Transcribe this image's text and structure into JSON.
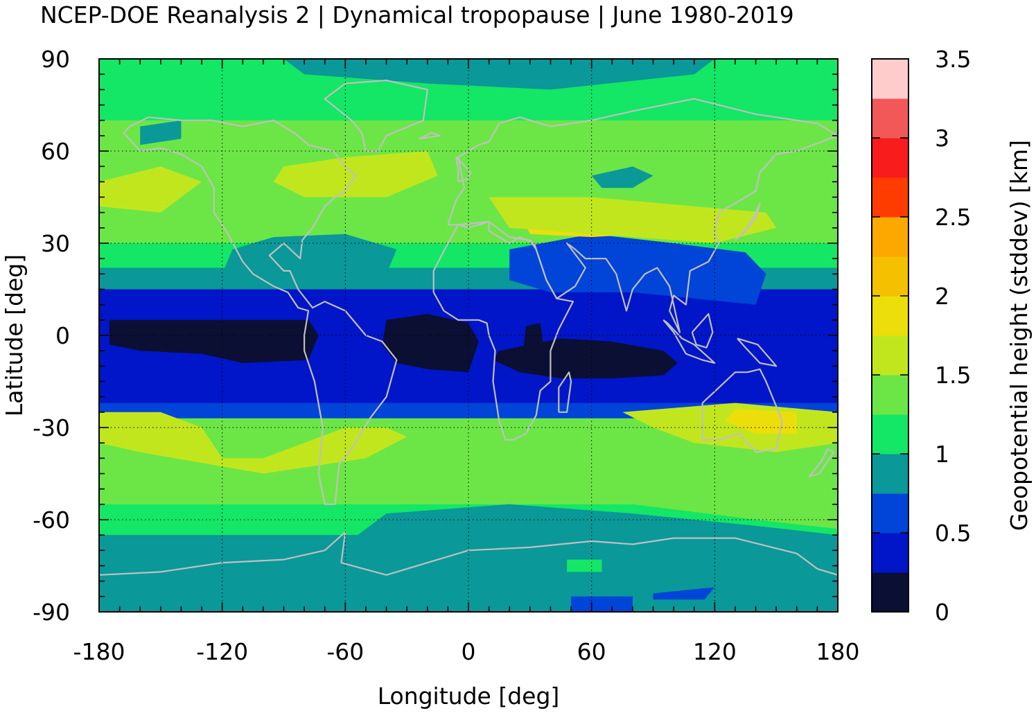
{
  "chart_data": {
    "type": "heatmap",
    "title": "NCEP-DOE Reanalysis 2 | Dynamical tropopause | June 1980-2019",
    "xlabel": "Longitude [deg]",
    "ylabel": "Latitude [deg]",
    "colorbar_label": "Geopotential height (stddev) [km]",
    "xlim": [
      -180,
      180
    ],
    "ylim": [
      -90,
      90
    ],
    "zlim": [
      0,
      3.5
    ],
    "x_ticks": [
      -180,
      -120,
      -60,
      0,
      60,
      120,
      180
    ],
    "y_ticks": [
      -90,
      -60,
      -30,
      0,
      30,
      60,
      90
    ],
    "colorbar_ticks": [
      0,
      0.5,
      1,
      1.5,
      2,
      2.5,
      3,
      3.5
    ],
    "grid": true,
    "coastlines": true,
    "color_levels": [
      {
        "from": 0.0,
        "to": 0.25,
        "color": "#0b0f33"
      },
      {
        "from": 0.25,
        "to": 0.5,
        "color": "#0016c8"
      },
      {
        "from": 0.5,
        "to": 0.75,
        "color": "#0044d8"
      },
      {
        "from": 0.75,
        "to": 1.0,
        "color": "#0a9898"
      },
      {
        "from": 1.0,
        "to": 1.25,
        "color": "#14e666"
      },
      {
        "from": 1.25,
        "to": 1.5,
        "color": "#6ce646"
      },
      {
        "from": 1.5,
        "to": 1.75,
        "color": "#c2e61e"
      },
      {
        "from": 1.75,
        "to": 2.0,
        "color": "#ecde0a"
      },
      {
        "from": 2.0,
        "to": 2.25,
        "color": "#f4c000"
      },
      {
        "from": 2.25,
        "to": 2.5,
        "color": "#fca800"
      },
      {
        "from": 2.5,
        "to": 2.75,
        "color": "#ff3c00"
      },
      {
        "from": 2.75,
        "to": 3.0,
        "color": "#f81c1c"
      },
      {
        "from": 3.0,
        "to": 3.25,
        "color": "#f25858"
      },
      {
        "from": 3.25,
        "to": 3.5,
        "color": "#ffcccc"
      }
    ],
    "background_lon_sweep": [
      {
        "lat": 90,
        "values": [
          1.1
        ]
      },
      {
        "lat": 80,
        "values": [
          1.15
        ]
      },
      {
        "lat": 70,
        "values": [
          1.25
        ]
      },
      {
        "lat": 60,
        "values": [
          1.25
        ]
      },
      {
        "lat": 50,
        "values": [
          1.4
        ]
      },
      {
        "lat": 40,
        "values": [
          1.3
        ]
      },
      {
        "lat": 30,
        "values": [
          1.1
        ]
      },
      {
        "lat": 22,
        "values": [
          0.9
        ]
      },
      {
        "lat": 15,
        "values": [
          0.45
        ]
      },
      {
        "lat": 5,
        "values": [
          0.35
        ]
      },
      {
        "lat": -5,
        "values": [
          0.35
        ]
      },
      {
        "lat": -15,
        "values": [
          0.4
        ]
      },
      {
        "lat": -22,
        "values": [
          0.7
        ]
      },
      {
        "lat": -27,
        "values": [
          1.3
        ]
      },
      {
        "lat": -35,
        "values": [
          1.4
        ]
      },
      {
        "lat": -45,
        "values": [
          1.3
        ]
      },
      {
        "lat": -55,
        "values": [
          1.1
        ]
      },
      {
        "lat": -65,
        "values": [
          0.95
        ]
      },
      {
        "lat": -75,
        "values": [
          0.9
        ]
      },
      {
        "lat": -90,
        "values": [
          0.85
        ]
      }
    ],
    "regions": [
      {
        "level": 0.25,
        "lonlat": [
          [
            -180,
            -5
          ],
          [
            -165,
            3
          ],
          [
            -120,
            5
          ],
          [
            -80,
            6
          ],
          [
            -72,
            2
          ],
          [
            -75,
            -5
          ],
          [
            -80,
            -10
          ],
          [
            -120,
            -9
          ],
          [
            -160,
            -8
          ],
          [
            -180,
            -8
          ]
        ]
      },
      {
        "level": 0.1,
        "lonlat": [
          [
            -175,
            5
          ],
          [
            -150,
            5
          ],
          [
            -110,
            5
          ],
          [
            -78,
            5
          ],
          [
            -73,
            0
          ],
          [
            -78,
            -8
          ],
          [
            -110,
            -9
          ],
          [
            -130,
            -6
          ],
          [
            -160,
            -5
          ],
          [
            -175,
            -3
          ]
        ]
      },
      {
        "level": 0.1,
        "lonlat": [
          [
            -40,
            5
          ],
          [
            -20,
            7
          ],
          [
            0,
            4
          ],
          [
            5,
            -2
          ],
          [
            0,
            -12
          ],
          [
            -20,
            -11
          ],
          [
            -35,
            -9
          ],
          [
            -42,
            -3
          ]
        ]
      },
      {
        "level": 0.1,
        "lonlat": [
          [
            15,
            -5
          ],
          [
            30,
            -3
          ],
          [
            45,
            -1
          ],
          [
            70,
            -2
          ],
          [
            95,
            -5
          ],
          [
            102,
            -9
          ],
          [
            95,
            -13
          ],
          [
            70,
            -14
          ],
          [
            45,
            -14
          ],
          [
            25,
            -12
          ],
          [
            12,
            -8
          ]
        ]
      },
      {
        "level": 0.1,
        "lonlat": [
          [
            28,
            3
          ],
          [
            35,
            4
          ],
          [
            37,
            -6
          ],
          [
            30,
            -10
          ],
          [
            27,
            -3
          ]
        ]
      },
      {
        "level": 0.65,
        "lonlat": [
          [
            20,
            28
          ],
          [
            60,
            33
          ],
          [
            100,
            30
          ],
          [
            135,
            27
          ],
          [
            145,
            20
          ],
          [
            140,
            10
          ],
          [
            110,
            12
          ],
          [
            80,
            14
          ],
          [
            40,
            14
          ],
          [
            20,
            18
          ]
        ]
      },
      {
        "level": 0.85,
        "lonlat": [
          [
            -95,
            32
          ],
          [
            -60,
            33
          ],
          [
            -35,
            28
          ],
          [
            -40,
            20
          ],
          [
            -70,
            18
          ],
          [
            -100,
            20
          ],
          [
            -120,
            20
          ],
          [
            -115,
            28
          ]
        ]
      },
      {
        "level": 1.65,
        "lonlat": [
          [
            -180,
            50
          ],
          [
            -150,
            55
          ],
          0,
          [
            -130,
            50
          ],
          [
            -150,
            40
          ],
          [
            -180,
            42
          ]
        ]
      },
      {
        "level": 1.65,
        "lonlat": [
          [
            -90,
            55
          ],
          [
            -60,
            58
          ],
          [
            -20,
            60
          ],
          [
            -15,
            52
          ],
          [
            -40,
            45
          ],
          [
            -80,
            45
          ],
          [
            -95,
            50
          ]
        ]
      },
      {
        "level": 1.9,
        "lonlat": [
          [
            25,
            40
          ],
          [
            60,
            40
          ],
          [
            85,
            38
          ],
          [
            85,
            33
          ],
          [
            60,
            32
          ],
          [
            30,
            33
          ]
        ]
      },
      {
        "level": 1.55,
        "lonlat": [
          [
            10,
            45
          ],
          [
            60,
            45
          ],
          [
            110,
            42
          ],
          [
            145,
            40
          ],
          [
            150,
            35
          ],
          [
            120,
            30
          ],
          [
            80,
            32
          ],
          [
            20,
            35
          ]
        ]
      },
      {
        "level": 1.55,
        "lonlat": [
          [
            -180,
            -25
          ],
          [
            -150,
            -25
          ],
          [
            -130,
            -30
          ],
          [
            -120,
            -40
          ],
          [
            -100,
            -40
          ],
          [
            -80,
            -35
          ],
          [
            -60,
            -30
          ],
          [
            -40,
            -30
          ],
          [
            -30,
            -33
          ],
          [
            -50,
            -40
          ],
          [
            -100,
            -45
          ],
          [
            -160,
            -38
          ],
          [
            -180,
            -35
          ]
        ]
      },
      {
        "level": 1.55,
        "lonlat": [
          [
            75,
            -25
          ],
          [
            130,
            -22
          ],
          [
            180,
            -25
          ],
          [
            180,
            -35
          ],
          [
            150,
            -38
          ],
          [
            110,
            -35
          ],
          [
            90,
            -30
          ]
        ]
      },
      {
        "level": 1.85,
        "lonlat": [
          [
            130,
            -24
          ],
          [
            160,
            -25
          ],
          [
            160,
            -32
          ],
          [
            140,
            -32
          ],
          [
            125,
            -28
          ]
        ]
      },
      {
        "level": 1.3,
        "lonlat": [
          [
            -50,
            -45
          ],
          [
            -20,
            -45
          ],
          [
            20,
            -43
          ],
          [
            80,
            -46
          ],
          [
            110,
            -43
          ],
          [
            160,
            -50
          ],
          [
            180,
            -55
          ],
          [
            180,
            -63
          ],
          [
            140,
            -60
          ],
          [
            80,
            -55
          ],
          [
            20,
            -55
          ],
          [
            -40,
            -52
          ],
          [
            -60,
            -50
          ]
        ]
      },
      {
        "level": 0.9,
        "lonlat": [
          [
            -180,
            -70
          ],
          [
            -120,
            -72
          ],
          [
            -60,
            -68
          ],
          [
            -40,
            -58
          ],
          [
            20,
            -55
          ],
          [
            80,
            -58
          ],
          [
            140,
            -62
          ],
          [
            180,
            -65
          ],
          [
            180,
            -90
          ],
          [
            -180,
            -90
          ]
        ]
      },
      {
        "level": 0.9,
        "lonlat": [
          [
            60,
            52
          ],
          [
            80,
            55
          ],
          [
            90,
            52
          ],
          [
            80,
            48
          ],
          [
            65,
            48
          ]
        ]
      },
      {
        "level": 0.9,
        "lonlat": [
          [
            -160,
            68
          ],
          [
            -140,
            70
          ],
          [
            -140,
            64
          ],
          [
            -160,
            62
          ]
        ]
      },
      {
        "level": 0.9,
        "lonlat": [
          [
            -90,
            90
          ],
          [
            120,
            90
          ],
          [
            110,
            85
          ],
          [
            40,
            80
          ],
          [
            -20,
            82
          ],
          [
            -80,
            85
          ]
        ]
      },
      {
        "level": 0.6,
        "lonlat": [
          [
            50,
            -85
          ],
          [
            80,
            -85
          ],
          [
            80,
            -90
          ],
          [
            50,
            -90
          ]
        ]
      },
      {
        "level": 0.6,
        "lonlat": [
          [
            90,
            -84
          ],
          [
            120,
            -82
          ],
          [
            115,
            -86
          ],
          [
            90,
            -86
          ]
        ]
      },
      {
        "level": 1.2,
        "lonlat": [
          [
            48,
            -73
          ],
          [
            65,
            -73
          ],
          [
            65,
            -77
          ],
          [
            48,
            -77
          ]
        ]
      }
    ]
  }
}
